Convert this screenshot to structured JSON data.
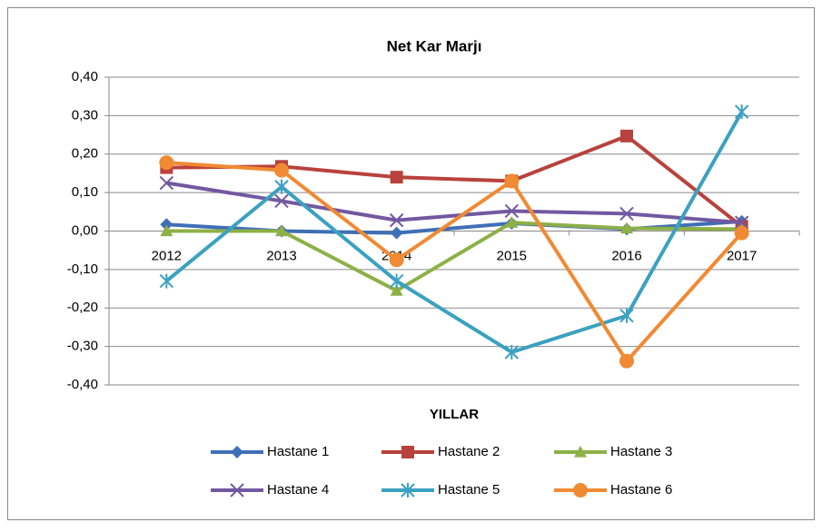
{
  "chart_data": {
    "type": "line",
    "title": "Net Kar Marjı",
    "x_label": "YILLAR",
    "categories": [
      "2012",
      "2013",
      "2014",
      "2015",
      "2016",
      "2017"
    ],
    "ylim": [
      -0.4,
      0.4
    ],
    "yticks": [
      {
        "value": 0.4,
        "label": "0,40"
      },
      {
        "value": 0.3,
        "label": "0,30"
      },
      {
        "value": 0.2,
        "label": "0,20"
      },
      {
        "value": 0.1,
        "label": "0,10"
      },
      {
        "value": 0,
        "label": "0,00"
      },
      {
        "value": -0.1,
        "label": "-0,10"
      },
      {
        "value": -0.2,
        "label": "-0,20"
      },
      {
        "value": -0.3,
        "label": "-0,30"
      },
      {
        "value": -0.4,
        "label": "-0,40"
      }
    ],
    "grid": true,
    "legend": "bottom",
    "series": [
      {
        "name": "Hastane 1",
        "color": "#3f6fb5",
        "marker": "diamond",
        "values": [
          0.017,
          0.0,
          -0.005,
          0.02,
          0.005,
          0.025
        ]
      },
      {
        "name": "Hastane 2",
        "color": "#b8423d",
        "marker": "square",
        "values": [
          0.165,
          0.168,
          0.14,
          0.13,
          0.247,
          0.012
        ]
      },
      {
        "name": "Hastane 3",
        "color": "#8db047",
        "marker": "triangle",
        "values": [
          0.0,
          0.0,
          -0.155,
          0.022,
          0.007,
          0.005
        ]
      },
      {
        "name": "Hastane 4",
        "color": "#7258a0",
        "marker": "x",
        "values": [
          0.125,
          0.078,
          0.028,
          0.052,
          0.045,
          0.022
        ]
      },
      {
        "name": "Hastane 5",
        "color": "#3ba1c0",
        "marker": "star",
        "values": [
          -0.13,
          0.115,
          -0.13,
          -0.315,
          -0.22,
          0.31
        ]
      },
      {
        "name": "Hastane 6",
        "color": "#f08a33",
        "marker": "circle",
        "values": [
          0.178,
          0.158,
          -0.075,
          0.13,
          -0.338,
          -0.005
        ]
      }
    ]
  }
}
